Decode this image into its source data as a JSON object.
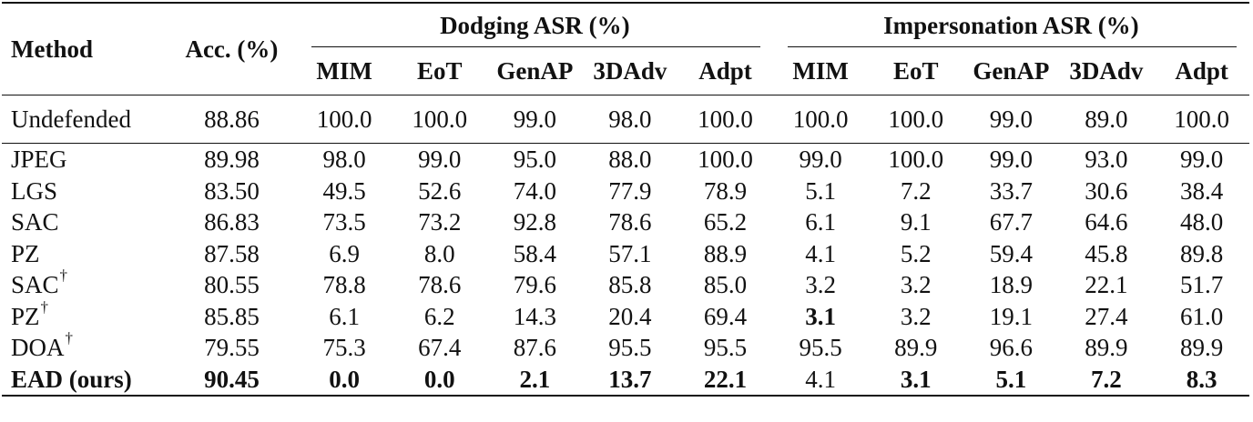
{
  "table": {
    "headers": {
      "method": "Method",
      "acc": "Acc. (%)",
      "dodging_group": "Dodging ASR (%)",
      "impersonation_group": "Impersonation ASR (%)",
      "sub": [
        "MIM",
        "EoT",
        "GenAP",
        "3DAdv",
        "Adpt",
        "MIM",
        "EoT",
        "GenAP",
        "3DAdv",
        "Adpt"
      ]
    },
    "rows": [
      {
        "method": "Undefended",
        "dagger": "",
        "values": [
          "88.86",
          "100.0",
          "100.0",
          "99.0",
          "98.0",
          "100.0",
          "100.0",
          "100.0",
          "99.0",
          "89.0",
          "100.0"
        ],
        "bold": []
      },
      {
        "method": "JPEG",
        "dagger": "",
        "values": [
          "89.98",
          "98.0",
          "99.0",
          "95.0",
          "88.0",
          "100.0",
          "99.0",
          "100.0",
          "99.0",
          "93.0",
          "99.0"
        ],
        "bold": []
      },
      {
        "method": "LGS",
        "dagger": "",
        "values": [
          "83.50",
          "49.5",
          "52.6",
          "74.0",
          "77.9",
          "78.9",
          "5.1",
          "7.2",
          "33.7",
          "30.6",
          "38.4"
        ],
        "bold": []
      },
      {
        "method": "SAC",
        "dagger": "",
        "values": [
          "86.83",
          "73.5",
          "73.2",
          "92.8",
          "78.6",
          "65.2",
          "6.1",
          "9.1",
          "67.7",
          "64.6",
          "48.0"
        ],
        "bold": []
      },
      {
        "method": "PZ",
        "dagger": "",
        "values": [
          "87.58",
          "6.9",
          "8.0",
          "58.4",
          "57.1",
          "88.9",
          "4.1",
          "5.2",
          "59.4",
          "45.8",
          "89.8"
        ],
        "bold": []
      },
      {
        "method": "SAC",
        "dagger": "†",
        "values": [
          "80.55",
          "78.8",
          "78.6",
          "79.6",
          "85.8",
          "85.0",
          "3.2",
          "3.2",
          "18.9",
          "22.1",
          "51.7"
        ],
        "bold": []
      },
      {
        "method": "PZ",
        "dagger": "†",
        "values": [
          "85.85",
          "6.1",
          "6.2",
          "14.3",
          "20.4",
          "69.4",
          "3.1",
          "3.2",
          "19.1",
          "27.4",
          "61.0"
        ],
        "bold": [
          6
        ]
      },
      {
        "method": "DOA",
        "dagger": "†",
        "values": [
          "79.55",
          "75.3",
          "67.4",
          "87.6",
          "95.5",
          "95.5",
          "95.5",
          "89.9",
          "96.6",
          "89.9",
          "89.9"
        ],
        "bold": []
      },
      {
        "method": "EAD (ours)",
        "dagger": "",
        "values": [
          "90.45",
          "0.0",
          "0.0",
          "2.1",
          "13.7",
          "22.1",
          "4.1",
          "3.1",
          "5.1",
          "7.2",
          "8.3"
        ],
        "bold": [
          0,
          1,
          2,
          3,
          4,
          5,
          7,
          8,
          9,
          10
        ],
        "method_bold": true
      }
    ]
  }
}
